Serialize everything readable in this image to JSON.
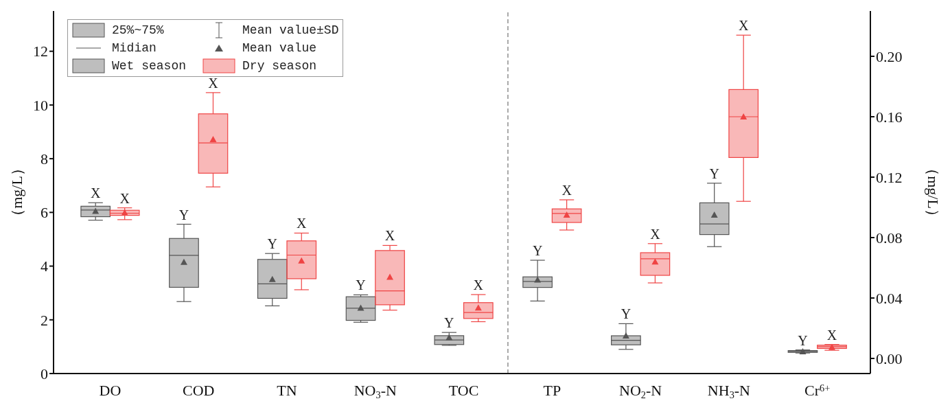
{
  "chart_data": {
    "type": "box",
    "categories": [
      "DO",
      "COD",
      "TN",
      "NO$_{3}$-N",
      "TOC",
      "TP",
      "NO$_{2}$-N",
      "NH$_{3}$-N",
      "Cr$^{6+}$"
    ],
    "ylabel": "（mg/L）",
    "y2label": "（mg/L）",
    "ylim": [
      0,
      13.5
    ],
    "yticks": [
      0,
      2,
      4,
      6,
      8,
      10,
      12
    ],
    "y2lim": [
      -0.01,
      0.23
    ],
    "y2ticks": [
      {
        "value": 0,
        "label": "0.00"
      },
      {
        "value": 0.04,
        "label": "0.04"
      },
      {
        "value": 0.08,
        "label": "0.08"
      },
      {
        "value": 0.12,
        "label": "0.12"
      },
      {
        "value": 0.16,
        "label": "0.16"
      },
      {
        "value": 0.2,
        "label": "0.20"
      }
    ],
    "marker": "triangle",
    "legend": "top left",
    "annotations": [
      "25%~75%",
      "Mean value±SD",
      "Midian",
      "Mean value"
    ],
    "series": [
      {
        "name": "Wet season",
        "color": "#555555",
        "boxes": [
          {
            "low": 5.71,
            "q1": 5.84,
            "median": 6.09,
            "q3": 6.23,
            "high": 6.36,
            "mean": 6.05
          },
          {
            "low": 2.68,
            "q1": 3.21,
            "median": 4.4,
            "q3": 5.03,
            "high": 5.56,
            "mean": 4.15
          },
          {
            "low": 2.52,
            "q1": 2.8,
            "median": 3.34,
            "q3": 4.25,
            "high": 4.47,
            "mean": 3.51
          },
          {
            "low": 1.91,
            "q1": 1.98,
            "median": 2.43,
            "q3": 2.86,
            "high": 2.93,
            "mean": 2.44
          },
          {
            "low": 1.05,
            "q1": 1.08,
            "median": 1.25,
            "q3": 1.41,
            "high": 1.53,
            "mean": 1.34
          },
          null,
          null,
          null,
          null
        ],
        "value_labels": [
          "X",
          "Y",
          "Y",
          "Y",
          "Y",
          null,
          null,
          null,
          null
        ]
      },
      {
        "name": "Dry season",
        "color": "#ef4444",
        "boxes": [
          {
            "low": 5.73,
            "q1": 5.89,
            "median": 5.97,
            "q3": 6.08,
            "high": 6.17,
            "mean": 5.99
          },
          {
            "low": 6.95,
            "q1": 7.46,
            "median": 8.59,
            "q3": 9.67,
            "high": 10.46,
            "mean": 8.72
          },
          {
            "low": 3.12,
            "q1": 3.53,
            "median": 4.41,
            "q3": 4.94,
            "high": 5.23,
            "mean": 4.2
          },
          {
            "low": 2.36,
            "q1": 2.56,
            "median": 3.08,
            "q3": 4.58,
            "high": 4.77,
            "mean": 3.59
          },
          {
            "low": 1.93,
            "q1": 2.05,
            "median": 2.27,
            "q3": 2.64,
            "high": 2.94,
            "mean": 2.45
          },
          null,
          null,
          null,
          null
        ],
        "value_labels": [
          "X",
          "X",
          "X",
          "X",
          "X",
          null,
          null,
          null,
          null
        ]
      },
      {
        "color": "#555555",
        "axis": "y2",
        "boxes": [
          null,
          null,
          null,
          null,
          null,
          {
            "low": 0.038,
            "q1": 0.047,
            "median": 0.051,
            "q3": 0.054,
            "high": 0.065,
            "mean": 0.052
          },
          {
            "low": 0.006,
            "q1": 0.009,
            "median": 0.012,
            "q3": 0.015,
            "high": 0.023,
            "mean": 0.015
          },
          {
            "low": 0.074,
            "q1": 0.082,
            "median": 0.089,
            "q3": 0.103,
            "high": 0.116,
            "mean": 0.095
          },
          {
            "low": 0.0036,
            "q1": 0.004,
            "median": 0.0046,
            "q3": 0.0052,
            "high": 0.0056,
            "mean": 0.0046
          }
        ],
        "value_labels": [
          null,
          null,
          null,
          null,
          null,
          "Y",
          "Y",
          "Y",
          "Y"
        ]
      },
      {
        "color": "#ef4444",
        "axis": "y2",
        "boxes": [
          null,
          null,
          null,
          null,
          null,
          {
            "low": 0.085,
            "q1": 0.09,
            "median": 0.096,
            "q3": 0.099,
            "high": 0.105,
            "mean": 0.095
          },
          {
            "low": 0.05,
            "q1": 0.055,
            "median": 0.066,
            "q3": 0.07,
            "high": 0.076,
            "mean": 0.064
          },
          {
            "low": 0.104,
            "q1": 0.133,
            "median": 0.16,
            "q3": 0.178,
            "high": 0.214,
            "mean": 0.16
          },
          {
            "low": 0.0054,
            "q1": 0.0066,
            "median": 0.0078,
            "q3": 0.0088,
            "high": 0.0092,
            "mean": 0.0074
          }
        ],
        "value_labels": [
          null,
          null,
          null,
          null,
          null,
          "X",
          "X",
          "X",
          "X"
        ]
      }
    ]
  }
}
